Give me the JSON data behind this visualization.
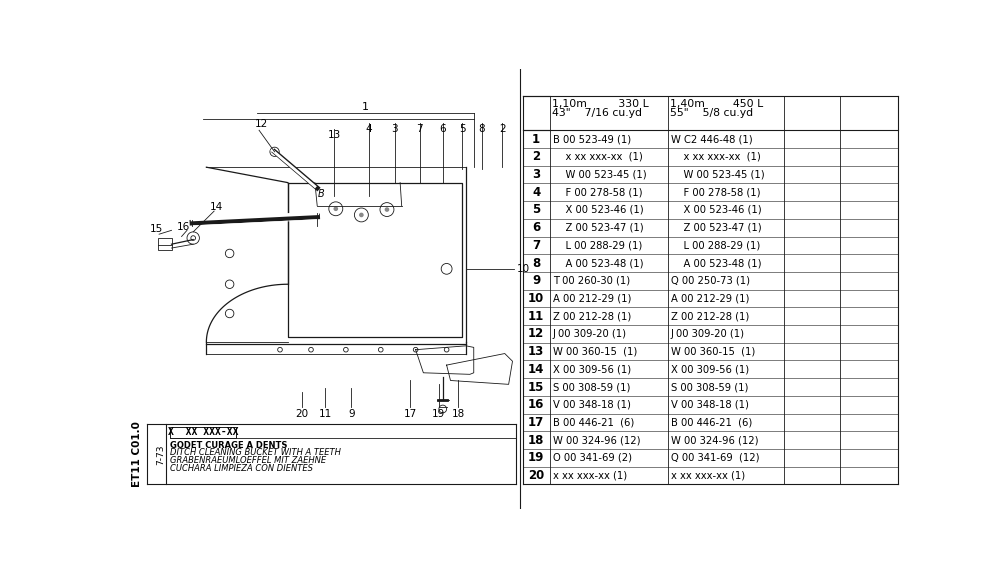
{
  "background_color": "#ffffff",
  "table_header_col2_line1": "1,10m         330 L",
  "table_header_col2_line2": "43\"    7/16 cu.yd",
  "table_header_col3_line1": "1,40m        450 L",
  "table_header_col3_line2": "55\"    5/8 cu.yd",
  "rows": [
    {
      "num": "1",
      "col2": "B 00 523-49 (1)",
      "col3": "W C2 446-48 (1)"
    },
    {
      "num": "2",
      "col2": "    x xx xxx-xx  (1)",
      "col3": "    x xx xxx-xx  (1)"
    },
    {
      "num": "3",
      "col2": "    W 00 523-45 (1)",
      "col3": "    W 00 523-45 (1)"
    },
    {
      "num": "4",
      "col2": "    F 00 278-58 (1)",
      "col3": "    F 00 278-58 (1)"
    },
    {
      "num": "5",
      "col2": "    X 00 523-46 (1)",
      "col3": "    X 00 523-46 (1)"
    },
    {
      "num": "6",
      "col2": "    Z 00 523-47 (1)",
      "col3": "    Z 00 523-47 (1)"
    },
    {
      "num": "7",
      "col2": "    L 00 288-29 (1)",
      "col3": "    L 00 288-29 (1)"
    },
    {
      "num": "8",
      "col2": "    A 00 523-48 (1)",
      "col3": "    A 00 523-48 (1)"
    },
    {
      "num": "9",
      "col2": "T 00 260-30 (1)",
      "col3": "Q 00 250-73 (1)"
    },
    {
      "num": "10",
      "col2": "A 00 212-29 (1)",
      "col3": "A 00 212-29 (1)"
    },
    {
      "num": "11",
      "col2": "Z 00 212-28 (1)",
      "col3": "Z 00 212-28 (1)"
    },
    {
      "num": "12",
      "col2": "J 00 309-20 (1)",
      "col3": "J 00 309-20 (1)"
    },
    {
      "num": "13",
      "col2": "W 00 360-15  (1)",
      "col3": "W 00 360-15  (1)"
    },
    {
      "num": "14",
      "col2": "X 00 309-56 (1)",
      "col3": "X 00 309-56 (1)"
    },
    {
      "num": "15",
      "col2": "S 00 308-59 (1)",
      "col3": "S 00 308-59 (1)"
    },
    {
      "num": "16",
      "col2": "V 00 348-18 (1)",
      "col3": "V 00 348-18 (1)"
    },
    {
      "num": "17",
      "col2": "B 00 446-21  (6)",
      "col3": "B 00 446-21  (6)"
    },
    {
      "num": "18",
      "col2": "W 00 324-96 (12)",
      "col3": "W 00 324-96 (12)"
    },
    {
      "num": "19",
      "col2": "O 00 341-69 (2)",
      "col3": "Q 00 341-69  (12)"
    },
    {
      "num": "20",
      "col2": "x xx xxx-xx (1)",
      "col3": "x xx xxx-xx (1)"
    }
  ],
  "legend_box_text": "X  XX XXX-XX",
  "legend_lines": [
    "GODET CURAGE A DENTS",
    "DITCH CLEANING BUCKET WITH A TEETH",
    "GRABENRAEUMLOEFFEL MIT ZAEHNE",
    "CUCHARA LIMPIEZA CON DIENTES"
  ],
  "side_text": "ET11 C01.0",
  "date_text": "7-73",
  "diagram_color": "#1a1a1a",
  "text_color": "#000000",
  "table_font_size": 7.2,
  "header_font_size": 7.8,
  "num_font_size": 8.5
}
